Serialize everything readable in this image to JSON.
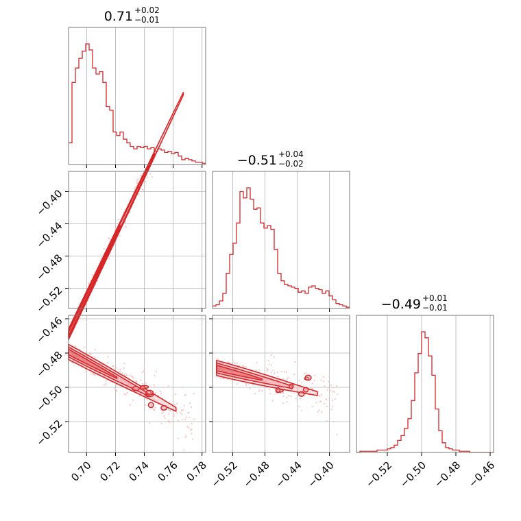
{
  "chart_data": {
    "type": "corner",
    "color": "#d62728",
    "fill_color": "#f0a0a8",
    "points_color": "#f6c6c6",
    "parameters": [
      {
        "median": "0.71",
        "plus": "+0.02",
        "minus": "−0.01",
        "range": [
          0.6875,
          0.7825
        ],
        "ticks": [
          0.7,
          0.72,
          0.74,
          0.76,
          0.78
        ],
        "tick_labels": [
          "0.70",
          "0.72",
          "0.74",
          "0.76",
          "0.78"
        ]
      },
      {
        "median": "−0.51",
        "plus": "+0.04",
        "minus": "−0.02",
        "range": [
          -0.545,
          -0.375
        ],
        "ticks": [
          -0.52,
          -0.48,
          -0.44,
          -0.4
        ],
        "tick_labels": [
          "−0.52",
          "−0.48",
          "−0.44",
          "−0.40"
        ]
      },
      {
        "median": "−0.49",
        "plus": "+0.01",
        "minus": "−0.01",
        "range": [
          -0.538,
          -0.458
        ],
        "ticks": [
          -0.52,
          -0.5,
          -0.48,
          -0.46
        ],
        "tick_labels": [
          "−0.52",
          "−0.50",
          "−0.48",
          "−0.46"
        ]
      }
    ],
    "histograms": [
      {
        "bin_edges_range": [
          0.6875,
          0.7825
        ],
        "counts": [
          18,
          68,
          80,
          88,
          94,
          100,
          95,
          80,
          75,
          77,
          68,
          48,
          45,
          27,
          24,
          27,
          21,
          18,
          15,
          13,
          15,
          14,
          15,
          13,
          14,
          11,
          13,
          12,
          10,
          11,
          9,
          10,
          7,
          4,
          5,
          4,
          3,
          2,
          2,
          1
        ]
      },
      {
        "bin_edges_range": [
          -0.545,
          -0.375
        ],
        "counts": [
          2,
          3,
          6,
          12,
          28,
          43,
          52,
          68,
          93,
          88,
          96,
          87,
          79,
          80,
          68,
          64,
          66,
          63,
          47,
          28,
          22,
          19,
          18,
          17,
          16,
          13,
          14,
          12,
          17,
          18,
          16,
          15,
          12,
          14,
          10,
          7,
          4,
          3,
          2,
          1
        ]
      },
      {
        "bin_edges_range": [
          -0.538,
          -0.458
        ],
        "counts": [
          0,
          1,
          1,
          1,
          1,
          1,
          2,
          2,
          2,
          3,
          4,
          6,
          10,
          14,
          20,
          28,
          43,
          66,
          82,
          100,
          95,
          80,
          64,
          36,
          18,
          8,
          4,
          3,
          2,
          2,
          1,
          1,
          1,
          0,
          0,
          0,
          0,
          0,
          0,
          0
        ]
      }
    ],
    "pairs": [
      {
        "x_param": 0,
        "y_param": 1,
        "slope": 3.75,
        "intercept": -3.155,
        "ridge_x": [
          0.6875,
          0.767
        ],
        "scatter_x": [
          0.69,
          0.775
        ],
        "spread": 0.012
      },
      {
        "x_param": 0,
        "y_param": 2,
        "slope": -0.45,
        "intercept": -0.17,
        "ridge_x": [
          0.6875,
          0.762
        ],
        "scatter_x": [
          0.69,
          0.775
        ],
        "spread": 0.008
      },
      {
        "x_param": 1,
        "y_param": 2,
        "slope": -0.12,
        "intercept": -0.5535,
        "ridge_x": [
          -0.54,
          -0.415
        ],
        "scatter_x": [
          -0.54,
          -0.39
        ],
        "spread": 0.008
      }
    ]
  }
}
